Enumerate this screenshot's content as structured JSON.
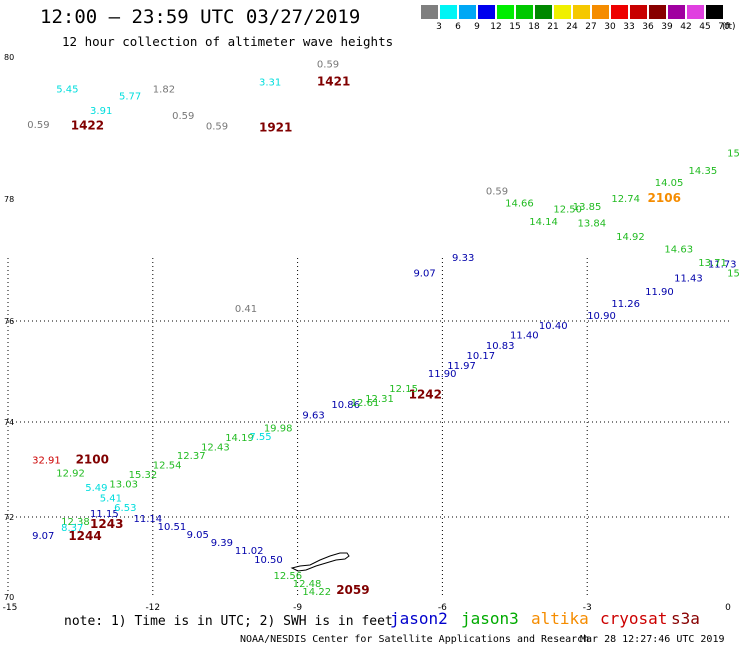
{
  "header": {
    "title": "12:00 — 23:59 UTC 03/27/2019",
    "subtitle": "12 hour collection of altimeter wave heights"
  },
  "legend": {
    "unit": "(ft)",
    "items": [
      {
        "label": "3",
        "color": "#7f7f7f"
      },
      {
        "label": "6",
        "color": "#00f5f5"
      },
      {
        "label": "9",
        "color": "#00a8f5"
      },
      {
        "label": "12",
        "color": "#0000ee"
      },
      {
        "label": "15",
        "color": "#00ee00"
      },
      {
        "label": "18",
        "color": "#00c800"
      },
      {
        "label": "21",
        "color": "#008800"
      },
      {
        "label": "24",
        "color": "#f0f000"
      },
      {
        "label": "27",
        "color": "#f5c800"
      },
      {
        "label": "30",
        "color": "#f58c00"
      },
      {
        "label": "33",
        "color": "#ee0000"
      },
      {
        "label": "36",
        "color": "#c80000"
      },
      {
        "label": "39",
        "color": "#880000"
      },
      {
        "label": "42",
        "color": "#a000a0"
      },
      {
        "label": "45",
        "color": "#e040e0"
      },
      {
        "label": "70",
        "color": "#000000"
      }
    ]
  },
  "chart_data": {
    "type": "scatter",
    "title": "12 hour collection of altimeter wave heights",
    "units": "ft",
    "lon_range": [
      -15,
      0
    ],
    "lat_range": [
      70,
      80
    ],
    "lon_ticks": [
      "-15",
      "-12",
      "-9",
      "-6",
      "-3",
      "0"
    ],
    "lat_ticks": [
      "70",
      "72",
      "74",
      "76",
      "78",
      "80"
    ],
    "grid": "dotted",
    "time_labels": [
      {
        "text": "1421",
        "lon": -8.6,
        "lat": 79.6,
        "color": "#800000"
      },
      {
        "text": "1422",
        "lon": -13.7,
        "lat": 78.98,
        "color": "#800000"
      },
      {
        "text": "1921",
        "lon": -9.8,
        "lat": 78.95,
        "color": "#800000"
      },
      {
        "text": "2106",
        "lon": -1.75,
        "lat": 77.95,
        "color": "#f58c00"
      },
      {
        "text": "1242",
        "lon": -6.7,
        "lat": 74.47,
        "color": "#800000"
      },
      {
        "text": "2100",
        "lon": -13.6,
        "lat": 73.13,
        "color": "#800000"
      },
      {
        "text": "1243",
        "lon": -13.3,
        "lat": 71.72,
        "color": "#800000"
      },
      {
        "text": "1244",
        "lon": -13.75,
        "lat": 71.43,
        "color": "#800000"
      },
      {
        "text": "2059",
        "lon": -8.2,
        "lat": 70.07,
        "color": "#800000"
      }
    ],
    "series": [
      {
        "name": "jason2",
        "color": "#0000aa",
        "points": [
          {
            "lon": -6.6,
            "lat": 76.73,
            "value": "9.07"
          },
          {
            "lon": -5.8,
            "lat": 76.98,
            "value": "9.33"
          },
          {
            "lon": -6.3,
            "lat": 74.89,
            "value": "11.90"
          },
          {
            "lon": -5.9,
            "lat": 75.05,
            "value": "11.97"
          },
          {
            "lon": -5.5,
            "lat": 75.25,
            "value": "10.17"
          },
          {
            "lon": -5.1,
            "lat": 75.45,
            "value": "10.83"
          },
          {
            "lon": -4.6,
            "lat": 75.65,
            "value": "11.40"
          },
          {
            "lon": -4.0,
            "lat": 75.84,
            "value": "10.40"
          },
          {
            "lon": -3.0,
            "lat": 76.03,
            "value": "10.90"
          },
          {
            "lon": -2.5,
            "lat": 76.23,
            "value": "11.26"
          },
          {
            "lon": -1.8,
            "lat": 76.43,
            "value": "11.90"
          },
          {
            "lon": -1.2,
            "lat": 76.65,
            "value": "11.43"
          },
          {
            "lon": -0.5,
            "lat": 76.88,
            "value": "11.73"
          },
          {
            "lon": -8.3,
            "lat": 74.28,
            "value": "10.86"
          },
          {
            "lon": -8.9,
            "lat": 74.07,
            "value": "9.63"
          },
          {
            "lon": -12.4,
            "lat": 71.88,
            "value": "11.14"
          },
          {
            "lon": -11.9,
            "lat": 71.67,
            "value": "10.51"
          },
          {
            "lon": -11.3,
            "lat": 71.48,
            "value": "9.05"
          },
          {
            "lon": -10.8,
            "lat": 71.27,
            "value": "9.39"
          },
          {
            "lon": -10.3,
            "lat": 71.07,
            "value": "11.02"
          },
          {
            "lon": -9.9,
            "lat": 70.85,
            "value": "10.50"
          },
          {
            "lon": -14.5,
            "lat": 71.45,
            "value": "9.07"
          },
          {
            "lon": -13.3,
            "lat": 72.0,
            "value": "11.15"
          }
        ]
      },
      {
        "name": "jason3",
        "color": "#22bb22",
        "points": [
          {
            "lon": -0.1,
            "lat": 78.6,
            "value": "15"
          },
          {
            "lon": -0.9,
            "lat": 78.35,
            "value": "14.35"
          },
          {
            "lon": -1.6,
            "lat": 78.18,
            "value": "14.05"
          },
          {
            "lon": -2.5,
            "lat": 77.95,
            "value": "12.74"
          },
          {
            "lon": -3.3,
            "lat": 77.82,
            "value": "13.85"
          },
          {
            "lon": -3.7,
            "lat": 77.78,
            "value": "12.50"
          },
          {
            "lon": -4.7,
            "lat": 77.88,
            "value": "14.66"
          },
          {
            "lon": -4.2,
            "lat": 77.57,
            "value": "14.14"
          },
          {
            "lon": -3.2,
            "lat": 77.55,
            "value": "13.84"
          },
          {
            "lon": -2.4,
            "lat": 77.33,
            "value": "14.92"
          },
          {
            "lon": -1.4,
            "lat": 77.12,
            "value": "14.63"
          },
          {
            "lon": -0.7,
            "lat": 76.9,
            "value": "13.71"
          },
          {
            "lon": -0.1,
            "lat": 76.73,
            "value": "15.0"
          },
          {
            "lon": -7.1,
            "lat": 74.59,
            "value": "12.15"
          },
          {
            "lon": -7.6,
            "lat": 74.4,
            "value": "12.31"
          },
          {
            "lon": -7.9,
            "lat": 74.32,
            "value": "12.61"
          },
          {
            "lon": -9.7,
            "lat": 73.8,
            "value": "19.98"
          },
          {
            "lon": -11.0,
            "lat": 73.4,
            "value": "12.43"
          },
          {
            "lon": -10.5,
            "lat": 73.6,
            "value": "14.19"
          },
          {
            "lon": -11.5,
            "lat": 73.22,
            "value": "12.37"
          },
          {
            "lon": -12.0,
            "lat": 73.02,
            "value": "12.54"
          },
          {
            "lon": -12.5,
            "lat": 72.82,
            "value": "15.32"
          },
          {
            "lon": -12.9,
            "lat": 72.62,
            "value": "13.03"
          },
          {
            "lon": -14.0,
            "lat": 72.85,
            "value": "12.92"
          },
          {
            "lon": -13.9,
            "lat": 71.8,
            "value": "12.38"
          },
          {
            "lon": -9.5,
            "lat": 70.45,
            "value": "12.56"
          },
          {
            "lon": -9.1,
            "lat": 70.25,
            "value": "12.48"
          },
          {
            "lon": -8.9,
            "lat": 70.05,
            "value": "14.22"
          }
        ]
      },
      {
        "name": "altika",
        "color": "#00dddd",
        "points": [
          {
            "lon": -14.0,
            "lat": 79.5,
            "value": "5.45"
          },
          {
            "lon": -13.3,
            "lat": 79.2,
            "value": "3.91"
          },
          {
            "lon": -12.7,
            "lat": 79.4,
            "value": "5.77"
          },
          {
            "lon": -9.8,
            "lat": 79.6,
            "value": "3.31"
          },
          {
            "lon": -10.0,
            "lat": 73.62,
            "value": "7.55"
          },
          {
            "lon": -13.4,
            "lat": 72.55,
            "value": "5.49"
          },
          {
            "lon": -13.1,
            "lat": 72.33,
            "value": "5.41"
          },
          {
            "lon": -12.8,
            "lat": 72.13,
            "value": "6.53"
          },
          {
            "lon": -13.9,
            "lat": 71.65,
            "value": "8.37"
          }
        ]
      },
      {
        "name": "cryosat",
        "color": "#cc0000",
        "points": [
          {
            "lon": -14.5,
            "lat": 73.13,
            "value": "32.91"
          }
        ]
      },
      {
        "name": "s3a",
        "color": "#777777",
        "points": [
          {
            "lon": -8.6,
            "lat": 79.85,
            "value": "0.59"
          },
          {
            "lon": -12.0,
            "lat": 79.5,
            "value": "1.82"
          },
          {
            "lon": -14.6,
            "lat": 79.0,
            "value": "0.59"
          },
          {
            "lon": -11.6,
            "lat": 79.13,
            "value": "0.59"
          },
          {
            "lon": -10.9,
            "lat": 78.98,
            "value": "0.59"
          },
          {
            "lon": -5.1,
            "lat": 78.06,
            "value": "0.59"
          },
          {
            "lon": -10.3,
            "lat": 76.15,
            "value": "0.41"
          }
        ]
      }
    ]
  },
  "footer": {
    "note": "note: 1) Time is in UTC; 2) SWH is in feet",
    "satellites": [
      {
        "name": "jason2",
        "color": "#0000cc"
      },
      {
        "name": "jason3",
        "color": "#00aa00"
      },
      {
        "name": "altika",
        "color": "#f58c00"
      },
      {
        "name": "cryosat",
        "color": "#cc0000"
      },
      {
        "name": "s3a",
        "color": "#880000"
      }
    ],
    "credit": "NOAA/NESDIS Center for Satellite Applications and Research",
    "timestamp": "Mar 28 12:27:46 UTC 2019"
  }
}
